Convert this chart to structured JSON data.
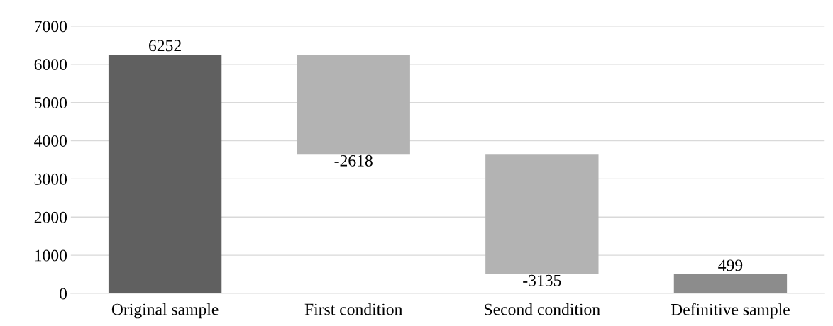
{
  "chart_data": {
    "type": "bar",
    "categories": [
      "Original sample",
      "First condition",
      "Second condition",
      "Definitive sample"
    ],
    "values": [
      6252,
      -2618,
      -3135,
      499
    ],
    "base": [
      0,
      6252,
      3634,
      0
    ],
    "colors": [
      "#606060",
      "#b3b3b3",
      "#b3b3b3",
      "#8c8c8c"
    ],
    "ylim": [
      0,
      7000
    ],
    "yticks": [
      0,
      1000,
      2000,
      3000,
      4000,
      5000,
      6000,
      7000
    ],
    "grid": "y",
    "data_labels": true
  }
}
